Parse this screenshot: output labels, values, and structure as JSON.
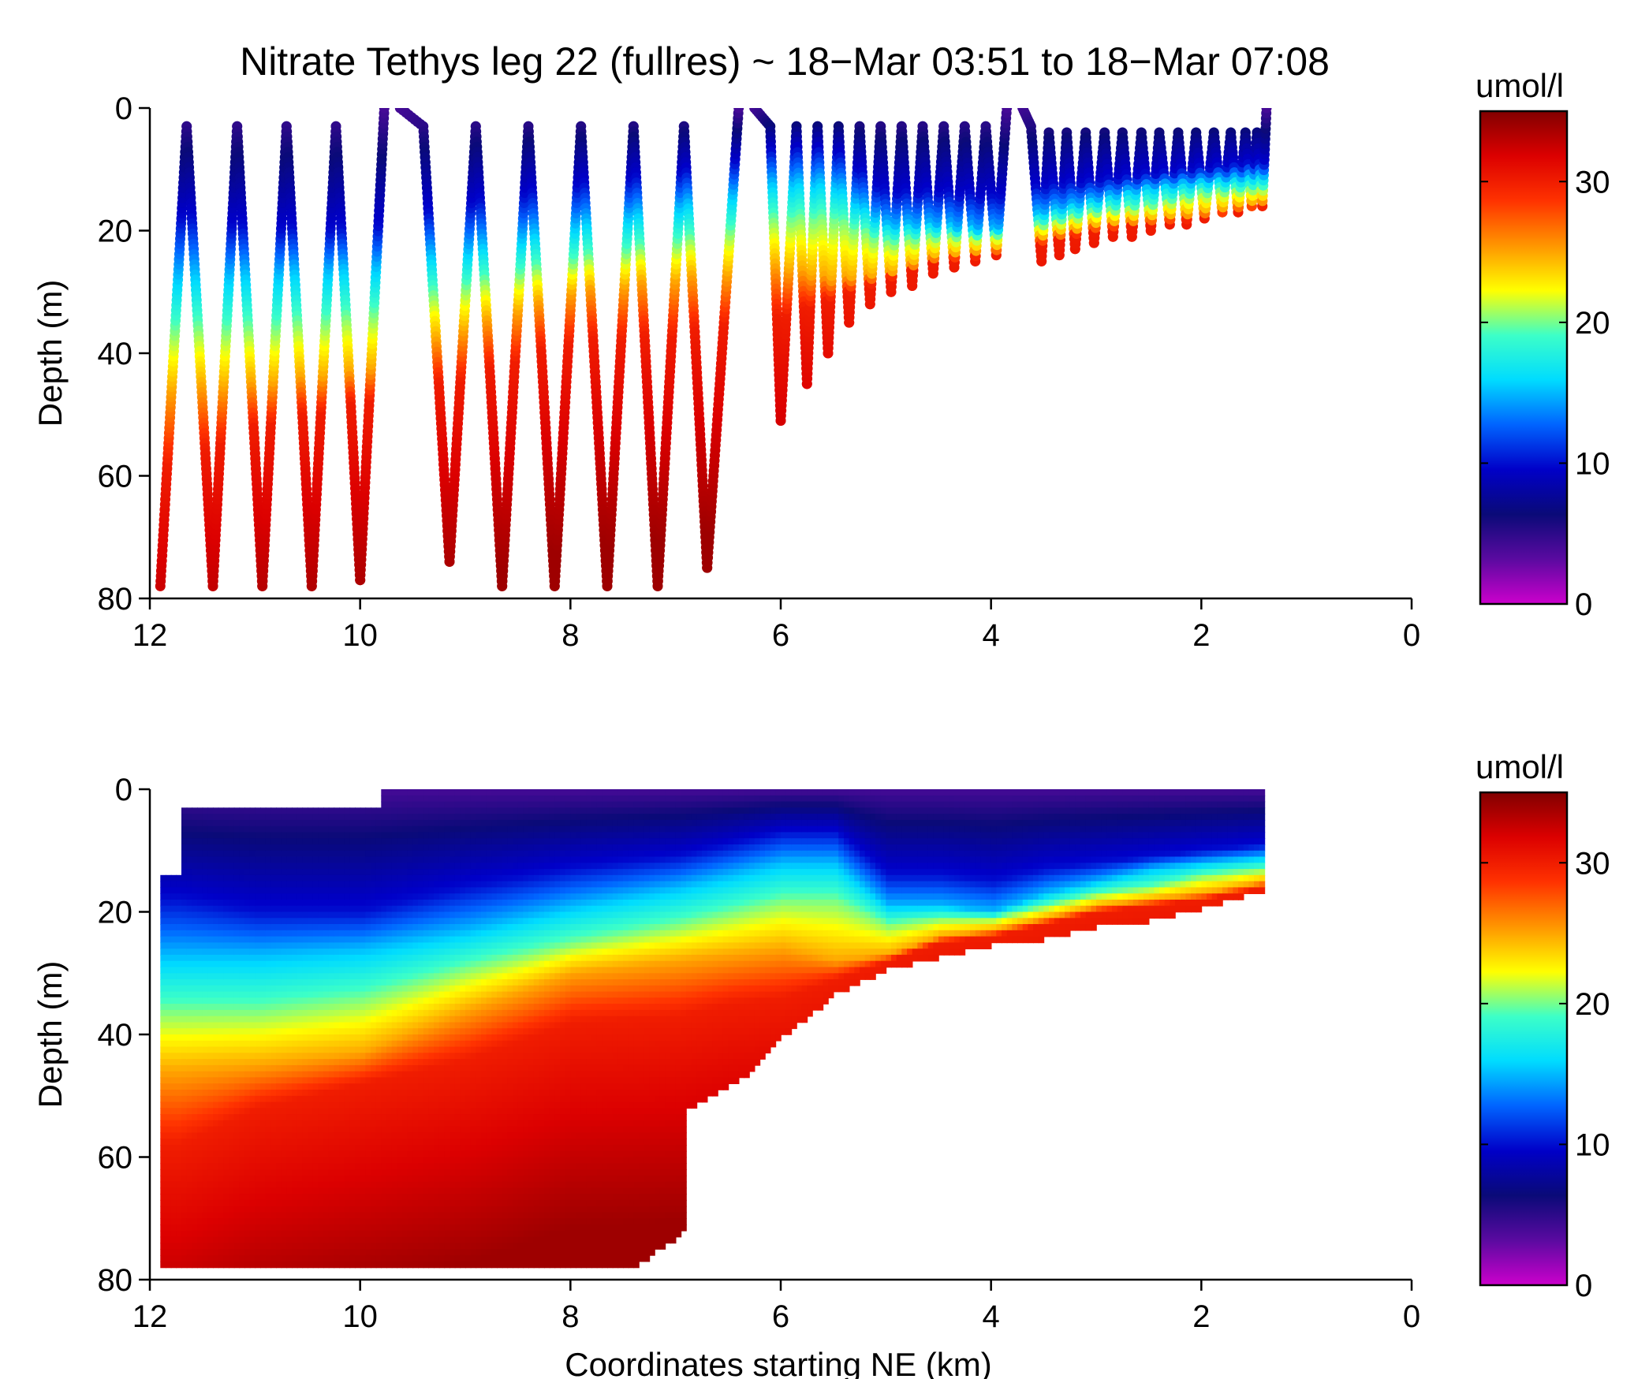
{
  "figure": {
    "title": "Nitrate Tethys leg 22 (fullres) ~ 18−Mar 03:51 to 18−Mar 07:08"
  },
  "colormap": [
    "#cc00cc",
    "#5a0aa0",
    "#0a0a78",
    "#0000c8",
    "#0064ff",
    "#00dcff",
    "#3cffc8",
    "#ffff00",
    "#ff9600",
    "#ff3200",
    "#dc0000",
    "#820000"
  ],
  "chart_data": [
    {
      "type": "scatter",
      "description_units": "umol/l",
      "xlabel": "",
      "ylabel": "Depth (m)",
      "xlim": [
        12,
        0
      ],
      "ylim": [
        80,
        0
      ],
      "xticks": [
        12,
        10,
        8,
        6,
        4,
        2,
        0
      ],
      "yticks": [
        0,
        20,
        40,
        60,
        80
      ],
      "colorbar": {
        "label": "umol/l",
        "range": [
          0,
          35
        ],
        "ticks": [
          0,
          10,
          20,
          30
        ]
      },
      "turning_points": {
        "x": [
          11.9,
          11.65,
          11.4,
          11.17,
          10.93,
          10.7,
          10.46,
          10.23,
          10.0,
          9.77,
          9.62,
          9.4,
          9.15,
          8.9,
          8.65,
          8.4,
          8.15,
          7.9,
          7.65,
          7.4,
          7.17,
          6.92,
          6.7,
          6.4,
          6.25,
          6.1,
          6.0,
          5.85,
          5.75,
          5.65,
          5.55,
          5.45,
          5.35,
          5.25,
          5.15,
          5.05,
          4.95,
          4.85,
          4.75,
          4.65,
          4.55,
          4.45,
          4.35,
          4.25,
          4.15,
          4.05,
          3.95,
          3.85,
          3.7,
          3.62,
          3.52,
          3.45,
          3.35,
          3.28,
          3.2,
          3.1,
          3.02,
          2.92,
          2.84,
          2.75,
          2.66,
          2.57,
          2.48,
          2.4,
          2.3,
          2.22,
          2.14,
          2.05,
          1.97,
          1.88,
          1.8,
          1.72,
          1.65,
          1.58,
          1.52,
          1.47,
          1.42,
          1.38
        ],
        "depth": [
          78,
          3,
          78,
          3,
          78,
          3,
          78,
          3,
          77,
          0,
          0,
          3,
          74,
          3,
          78,
          3,
          78,
          3,
          78,
          3,
          78,
          3,
          75,
          0,
          0,
          3,
          51,
          3,
          45,
          3,
          40,
          3,
          35,
          3,
          32,
          3,
          30,
          3,
          29,
          3,
          27,
          3,
          26,
          3,
          25,
          3,
          24,
          0,
          0,
          3,
          25,
          4,
          24,
          4,
          23,
          4,
          22,
          4,
          21,
          4,
          21,
          4,
          20,
          4,
          19,
          4,
          19,
          4,
          18,
          4,
          17,
          4,
          17,
          4,
          16,
          4,
          16,
          0
        ]
      }
    },
    {
      "type": "heatmap",
      "xlabel": "Coordinates starting NE (km)",
      "ylabel": "Depth (m)",
      "xlim": [
        12,
        0
      ],
      "ylim": [
        80,
        0
      ],
      "xticks": [
        12,
        10,
        8,
        6,
        4,
        2,
        0
      ],
      "yticks": [
        0,
        20,
        40,
        60,
        80
      ],
      "colorbar": {
        "label": "umol/l",
        "range": [
          0,
          35
        ],
        "ticks": [
          0,
          10,
          20,
          30
        ]
      },
      "coverage": {
        "x": [
          11.9,
          11.7,
          10.0,
          9.8,
          7.45,
          6.95,
          6.9,
          6.3,
          6.0,
          5.5,
          5.0,
          4.5,
          4.0,
          3.5,
          3.0,
          2.5,
          2.0,
          1.4
        ],
        "bottom_depth": [
          78,
          78,
          78,
          78,
          78,
          72,
          52,
          46,
          40,
          33,
          29,
          27,
          25,
          24,
          22,
          21,
          19,
          16
        ]
      },
      "contours": {
        "x": [
          11.75,
          11.0,
          10.0,
          9.0,
          8.0,
          7.0,
          6.5,
          6.0,
          5.5,
          5.0,
          4.5,
          4.0,
          3.5,
          3.0,
          2.5,
          2.0,
          1.4
        ],
        "c10": [
          18,
          20,
          20,
          16,
          13,
          11,
          9,
          7,
          7,
          14,
          14,
          15,
          13,
          12,
          11,
          10,
          9
        ],
        "c15": [
          27,
          27,
          26,
          23,
          19,
          16,
          14,
          12,
          12,
          19,
          19,
          20,
          17,
          15,
          13,
          12,
          11
        ],
        "c20": [
          36,
          36,
          34,
          29,
          25,
          22,
          20,
          18,
          18,
          22,
          21,
          21,
          19,
          17,
          16,
          14,
          13
        ],
        "c25": [
          46,
          45,
          43,
          36,
          30,
          28,
          27,
          26,
          28,
          27,
          24,
          23,
          21,
          19,
          18,
          17,
          15
        ],
        "c30": [
          58,
          52,
          48,
          44,
          38,
          37,
          35,
          34,
          31,
          28,
          25,
          24,
          22,
          20,
          19,
          18,
          16
        ]
      }
    }
  ]
}
